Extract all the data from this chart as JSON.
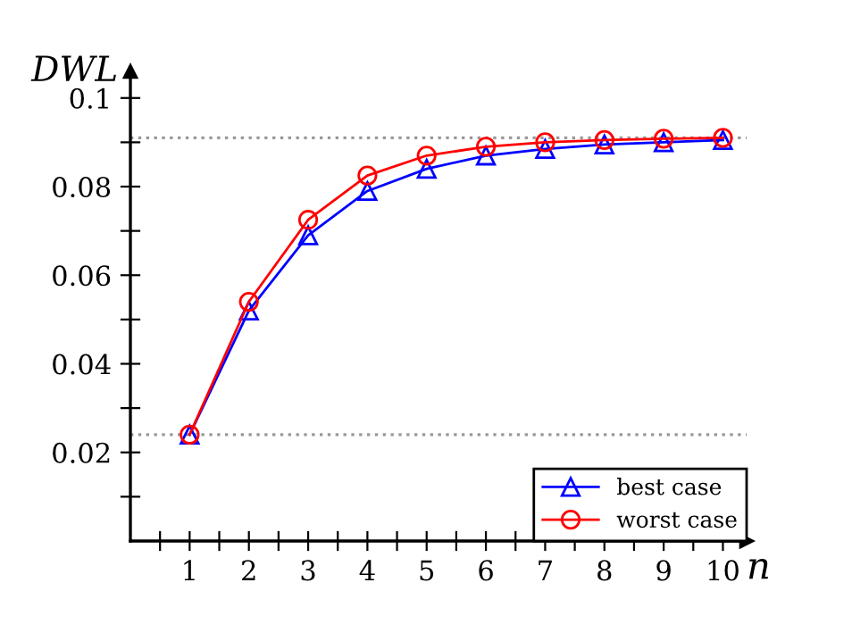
{
  "chart_data": {
    "type": "line",
    "xlabel": "n",
    "ylabel": "DWL",
    "x": [
      1,
      2,
      3,
      4,
      5,
      6,
      7,
      8,
      9,
      10
    ],
    "series": [
      {
        "name": "best case",
        "color": "#0000ff",
        "marker": "triangle",
        "values": [
          0.024,
          0.052,
          0.069,
          0.079,
          0.084,
          0.087,
          0.0885,
          0.0895,
          0.09,
          0.0905
        ]
      },
      {
        "name": "worst case",
        "color": "#ff0000",
        "marker": "circle",
        "values": [
          0.024,
          0.054,
          0.0725,
          0.0825,
          0.087,
          0.089,
          0.09,
          0.0905,
          0.0908,
          0.091
        ]
      }
    ],
    "xlim": [
      0,
      10.4
    ],
    "ylim": [
      0,
      0.106
    ],
    "xticks": [
      {
        "value": 0.5,
        "label": null
      },
      1,
      {
        "value": 1.5,
        "label": null
      },
      2,
      {
        "value": 2.5,
        "label": null
      },
      3,
      {
        "value": 3.5,
        "label": null
      },
      4,
      {
        "value": 4.5,
        "label": null
      },
      5,
      {
        "value": 5.5,
        "label": null
      },
      6,
      {
        "value": 6.5,
        "label": null
      },
      7,
      {
        "value": 7.5,
        "label": null
      },
      8,
      {
        "value": 8.5,
        "label": null
      },
      9,
      {
        "value": 9.5,
        "label": null
      },
      10
    ],
    "yticks": [
      {
        "value": 0.01,
        "label": null
      },
      0.02,
      {
        "value": 0.03,
        "label": null
      },
      0.04,
      {
        "value": 0.05,
        "label": null
      },
      0.06,
      {
        "value": 0.07,
        "label": null
      },
      0.08,
      {
        "value": 0.09,
        "label": null
      },
      0.1
    ],
    "ref_lines": [
      {
        "axis": "y",
        "value": 0.091,
        "color": "#999999",
        "line_style": "dotted"
      },
      {
        "axis": "y",
        "value": 0.024,
        "color": "#999999",
        "line_style": "dotted"
      }
    ],
    "legend": "bottom right",
    "grid": false
  }
}
